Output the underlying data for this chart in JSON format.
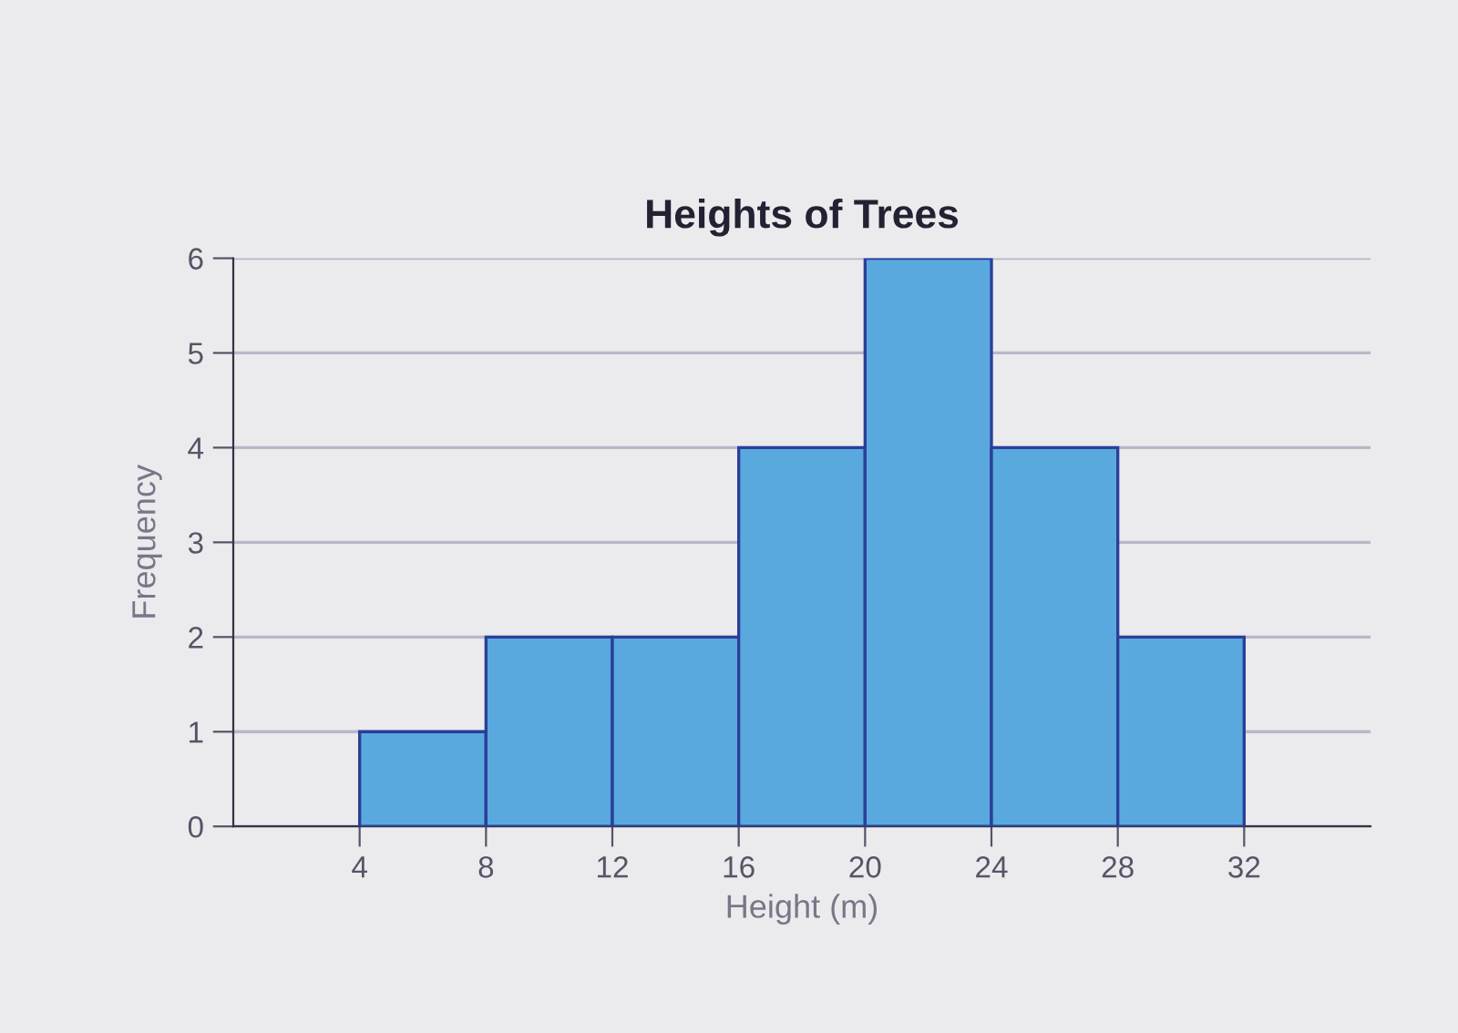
{
  "chart_data": {
    "type": "histogram",
    "title": "Heights of Trees",
    "xlabel": "Height (m)",
    "ylabel": "Frequency",
    "bins": [
      4,
      8,
      12,
      16,
      20,
      24,
      28,
      32
    ],
    "values": [
      1,
      2,
      2,
      4,
      6,
      4,
      2
    ],
    "color": "#5aa9de",
    "xlim": [
      0,
      36
    ],
    "xticks": [
      4,
      8,
      12,
      16,
      20,
      24,
      28,
      32
    ],
    "ylim": [
      0,
      6
    ],
    "yticks": [
      0,
      1,
      2,
      3,
      4,
      5,
      6
    ],
    "grid": "y"
  }
}
